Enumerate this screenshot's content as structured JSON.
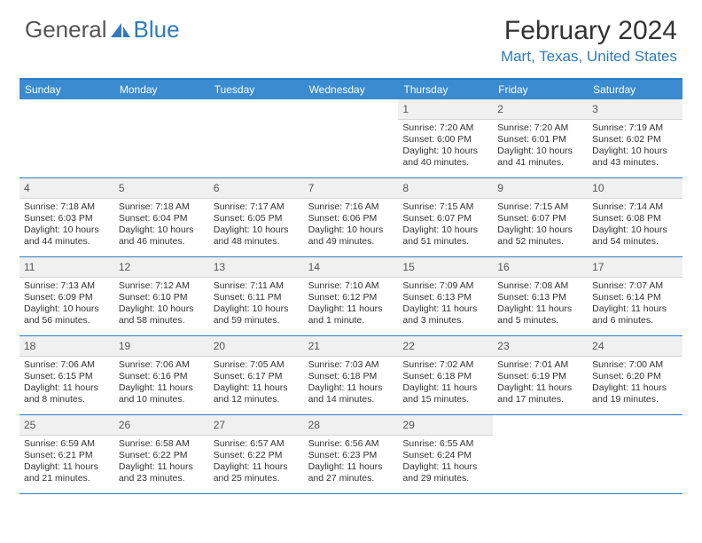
{
  "brand": {
    "part1": "General",
    "part2": "Blue"
  },
  "title": "February 2024",
  "location": "Mart, Texas, United States",
  "colors": {
    "accent": "#3a8bcf",
    "accent_dark": "#2f7bbf",
    "dayhead_bg": "#f0f0f0",
    "text": "#333333"
  },
  "weekdays": [
    "Sunday",
    "Monday",
    "Tuesday",
    "Wednesday",
    "Thursday",
    "Friday",
    "Saturday"
  ],
  "weeks": [
    [
      null,
      null,
      null,
      null,
      {
        "n": "1",
        "sr": "7:20 AM",
        "ss": "6:00 PM",
        "dl": "10 hours and 40 minutes."
      },
      {
        "n": "2",
        "sr": "7:20 AM",
        "ss": "6:01 PM",
        "dl": "10 hours and 41 minutes."
      },
      {
        "n": "3",
        "sr": "7:19 AM",
        "ss": "6:02 PM",
        "dl": "10 hours and 43 minutes."
      }
    ],
    [
      {
        "n": "4",
        "sr": "7:18 AM",
        "ss": "6:03 PM",
        "dl": "10 hours and 44 minutes."
      },
      {
        "n": "5",
        "sr": "7:18 AM",
        "ss": "6:04 PM",
        "dl": "10 hours and 46 minutes."
      },
      {
        "n": "6",
        "sr": "7:17 AM",
        "ss": "6:05 PM",
        "dl": "10 hours and 48 minutes."
      },
      {
        "n": "7",
        "sr": "7:16 AM",
        "ss": "6:06 PM",
        "dl": "10 hours and 49 minutes."
      },
      {
        "n": "8",
        "sr": "7:15 AM",
        "ss": "6:07 PM",
        "dl": "10 hours and 51 minutes."
      },
      {
        "n": "9",
        "sr": "7:15 AM",
        "ss": "6:07 PM",
        "dl": "10 hours and 52 minutes."
      },
      {
        "n": "10",
        "sr": "7:14 AM",
        "ss": "6:08 PM",
        "dl": "10 hours and 54 minutes."
      }
    ],
    [
      {
        "n": "11",
        "sr": "7:13 AM",
        "ss": "6:09 PM",
        "dl": "10 hours and 56 minutes."
      },
      {
        "n": "12",
        "sr": "7:12 AM",
        "ss": "6:10 PM",
        "dl": "10 hours and 58 minutes."
      },
      {
        "n": "13",
        "sr": "7:11 AM",
        "ss": "6:11 PM",
        "dl": "10 hours and 59 minutes."
      },
      {
        "n": "14",
        "sr": "7:10 AM",
        "ss": "6:12 PM",
        "dl": "11 hours and 1 minute."
      },
      {
        "n": "15",
        "sr": "7:09 AM",
        "ss": "6:13 PM",
        "dl": "11 hours and 3 minutes."
      },
      {
        "n": "16",
        "sr": "7:08 AM",
        "ss": "6:13 PM",
        "dl": "11 hours and 5 minutes."
      },
      {
        "n": "17",
        "sr": "7:07 AM",
        "ss": "6:14 PM",
        "dl": "11 hours and 6 minutes."
      }
    ],
    [
      {
        "n": "18",
        "sr": "7:06 AM",
        "ss": "6:15 PM",
        "dl": "11 hours and 8 minutes."
      },
      {
        "n": "19",
        "sr": "7:06 AM",
        "ss": "6:16 PM",
        "dl": "11 hours and 10 minutes."
      },
      {
        "n": "20",
        "sr": "7:05 AM",
        "ss": "6:17 PM",
        "dl": "11 hours and 12 minutes."
      },
      {
        "n": "21",
        "sr": "7:03 AM",
        "ss": "6:18 PM",
        "dl": "11 hours and 14 minutes."
      },
      {
        "n": "22",
        "sr": "7:02 AM",
        "ss": "6:18 PM",
        "dl": "11 hours and 15 minutes."
      },
      {
        "n": "23",
        "sr": "7:01 AM",
        "ss": "6:19 PM",
        "dl": "11 hours and 17 minutes."
      },
      {
        "n": "24",
        "sr": "7:00 AM",
        "ss": "6:20 PM",
        "dl": "11 hours and 19 minutes."
      }
    ],
    [
      {
        "n": "25",
        "sr": "6:59 AM",
        "ss": "6:21 PM",
        "dl": "11 hours and 21 minutes."
      },
      {
        "n": "26",
        "sr": "6:58 AM",
        "ss": "6:22 PM",
        "dl": "11 hours and 23 minutes."
      },
      {
        "n": "27",
        "sr": "6:57 AM",
        "ss": "6:22 PM",
        "dl": "11 hours and 25 minutes."
      },
      {
        "n": "28",
        "sr": "6:56 AM",
        "ss": "6:23 PM",
        "dl": "11 hours and 27 minutes."
      },
      {
        "n": "29",
        "sr": "6:55 AM",
        "ss": "6:24 PM",
        "dl": "11 hours and 29 minutes."
      },
      null,
      null
    ]
  ],
  "labels": {
    "sunrise": "Sunrise: ",
    "sunset": "Sunset: ",
    "daylight": "Daylight: "
  }
}
